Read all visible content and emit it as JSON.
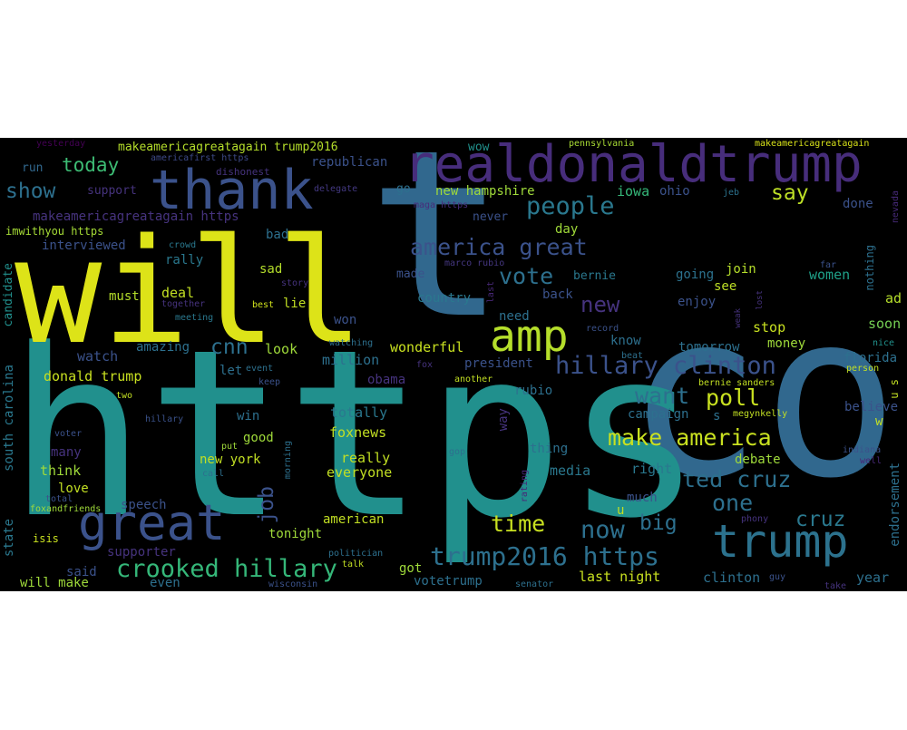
{
  "wordcloud": {
    "background": "#000000",
    "palette": [
      "#440154",
      "#3b528b",
      "#21908d",
      "#5dc863",
      "#fde725"
    ],
    "words": [
      {
        "id": "co",
        "text": "co",
        "color": "#31688e"
      },
      {
        "id": "https",
        "text": "https",
        "color": "#21908d"
      },
      {
        "id": "t",
        "text": "t",
        "color": "#31688e"
      },
      {
        "id": "will",
        "text": "will",
        "color": "#dde318"
      },
      {
        "id": "realdonaldtrump",
        "text": "realdonaldtrump",
        "color": "#472d7b"
      },
      {
        "id": "thank",
        "text": "thank",
        "color": "#3b528b"
      },
      {
        "id": "great",
        "text": "great",
        "color": "#3b528b"
      },
      {
        "id": "trump",
        "text": "trump",
        "color": "#2c728e"
      },
      {
        "id": "amp",
        "text": "amp",
        "color": "#b5de2b"
      },
      {
        "id": "makeamerica-trump2016",
        "text": "makeamericagreatagain trump2016",
        "color": "#b5de2b"
      },
      {
        "id": "yesterday",
        "text": "yesterday",
        "color": "#440154"
      },
      {
        "id": "pennsylvania",
        "text": "pennsylvania",
        "color": "#a8db34"
      },
      {
        "id": "makeamerica-top",
        "text": "makeamericagreatagain",
        "color": "#d8e219"
      },
      {
        "id": "americafirst",
        "text": "americafirst https",
        "color": "#3e4a89"
      },
      {
        "id": "dishonest",
        "text": "dishonest",
        "color": "#46337e"
      },
      {
        "id": "run",
        "text": "run",
        "color": "#31688e"
      },
      {
        "id": "today",
        "text": "today",
        "color": "#3dbc74"
      },
      {
        "id": "republican",
        "text": "republican",
        "color": "#3b528b"
      },
      {
        "id": "wow",
        "text": "wow",
        "color": "#21918c"
      },
      {
        "id": "show",
        "text": "show",
        "color": "#2d708e"
      },
      {
        "id": "support",
        "text": "support",
        "color": "#46337e"
      },
      {
        "id": "delegate",
        "text": "delegate",
        "color": "#443983"
      },
      {
        "id": "go",
        "text": "go",
        "color": "#2d708e"
      },
      {
        "id": "new-hampshire",
        "text": "new hampshire",
        "color": "#9fda3a"
      },
      {
        "id": "iowa",
        "text": "iowa",
        "color": "#35b779"
      },
      {
        "id": "ohio",
        "text": "ohio",
        "color": "#3b528b"
      },
      {
        "id": "jeb",
        "text": "jeb",
        "color": "#2c728e"
      },
      {
        "id": "nevada",
        "text": "nevada",
        "color": "#472a7a"
      },
      {
        "id": "say",
        "text": "say",
        "color": "#bddf26"
      },
      {
        "id": "done",
        "text": "done",
        "color": "#3b528b"
      },
      {
        "id": "maga-https",
        "text": "maga https",
        "color": "#472d7b"
      },
      {
        "id": "people",
        "text": "people",
        "color": "#2a788e"
      },
      {
        "id": "never",
        "text": "never",
        "color": "#3b528b"
      },
      {
        "id": "day",
        "text": "day",
        "color": "#a0da39"
      },
      {
        "id": "makeamerica-https",
        "text": "makeamericagreatagain https",
        "color": "#46337e"
      },
      {
        "id": "imwithyou",
        "text": "imwithyou https",
        "color": "#a5db36"
      },
      {
        "id": "interviewed",
        "text": "interviewed",
        "color": "#3b528b"
      },
      {
        "id": "crowd",
        "text": "crowd",
        "color": "#2a788e"
      },
      {
        "id": "bad",
        "text": "bad",
        "color": "#2d708e"
      },
      {
        "id": "america-great",
        "text": "america great",
        "color": "#3b528b"
      },
      {
        "id": "marco-rubio",
        "text": "marco rubio",
        "color": "#453781"
      },
      {
        "id": "far",
        "text": "far",
        "color": "#3b528b"
      },
      {
        "id": "nothing",
        "text": "nothing",
        "color": "#2d708e"
      },
      {
        "id": "rally",
        "text": "rally",
        "color": "#2a788e"
      },
      {
        "id": "vote",
        "text": "vote",
        "color": "#2d708e"
      },
      {
        "id": "made",
        "text": "made",
        "color": "#3b528b"
      },
      {
        "id": "bernie",
        "text": "bernie",
        "color": "#2a788e"
      },
      {
        "id": "join",
        "text": "join",
        "color": "#b5de2b"
      },
      {
        "id": "see",
        "text": "see",
        "color": "#bddf26"
      },
      {
        "id": "candidate",
        "text": "candidate",
        "color": "#21908d"
      },
      {
        "id": "sad",
        "text": "sad",
        "color": "#b5de2b"
      },
      {
        "id": "story",
        "text": "story",
        "color": "#46337e"
      },
      {
        "id": "new",
        "text": "new",
        "color": "#46337e"
      },
      {
        "id": "last",
        "text": "last",
        "color": "#482878"
      },
      {
        "id": "going",
        "text": "going",
        "color": "#2c728e"
      },
      {
        "id": "women",
        "text": "women",
        "color": "#1fa088"
      },
      {
        "id": "ad",
        "text": "ad",
        "color": "#b5de2b"
      },
      {
        "id": "must",
        "text": "must",
        "color": "#b5de2b"
      },
      {
        "id": "deal",
        "text": "deal",
        "color": "#c2df23"
      },
      {
        "id": "together",
        "text": "together",
        "color": "#46337e"
      },
      {
        "id": "best",
        "text": "best",
        "color": "#d0e11c"
      },
      {
        "id": "lie",
        "text": "lie",
        "color": "#c2df23"
      },
      {
        "id": "country",
        "text": "country",
        "color": "#2a788e"
      },
      {
        "id": "back",
        "text": "back",
        "color": "#3b528b"
      },
      {
        "id": "enjoy",
        "text": "enjoy",
        "color": "#3b528b"
      },
      {
        "id": "weak",
        "text": "weak",
        "color": "#46337e"
      },
      {
        "id": "lost",
        "text": "lost",
        "color": "#46337e"
      },
      {
        "id": "meeting",
        "text": "meeting",
        "color": "#2a788e"
      },
      {
        "id": "won",
        "text": "won",
        "color": "#3b528b"
      },
      {
        "id": "need",
        "text": "need",
        "color": "#2d708e"
      },
      {
        "id": "record",
        "text": "record",
        "color": "#3b528b"
      },
      {
        "id": "stop",
        "text": "stop",
        "color": "#c8e020"
      },
      {
        "id": "soon",
        "text": "soon",
        "color": "#75d054"
      },
      {
        "id": "watching",
        "text": "watching",
        "color": "#2d708e"
      },
      {
        "id": "cnn",
        "text": "cnn",
        "color": "#2d708e"
      },
      {
        "id": "look",
        "text": "look",
        "color": "#9fda3a"
      },
      {
        "id": "wonderful",
        "text": "wonderful",
        "color": "#c8e020"
      },
      {
        "id": "know",
        "text": "know",
        "color": "#2d708e"
      },
      {
        "id": "tomorrow",
        "text": "tomorrow",
        "color": "#2d708e"
      },
      {
        "id": "money",
        "text": "money",
        "color": "#9fda3a"
      },
      {
        "id": "nice",
        "text": "nice",
        "color": "#21918c"
      },
      {
        "id": "watch",
        "text": "watch",
        "color": "#3b528b"
      },
      {
        "id": "amazing",
        "text": "amazing",
        "color": "#2d708e"
      },
      {
        "id": "million",
        "text": "million",
        "color": "#2d708e"
      },
      {
        "id": "hillary-clinton",
        "text": "hillary clinton",
        "color": "#3b528b"
      },
      {
        "id": "fox",
        "text": "fox",
        "color": "#46337e"
      },
      {
        "id": "beat",
        "text": "beat",
        "color": "#2d708e"
      },
      {
        "id": "florida",
        "text": "florida",
        "color": "#2d708e"
      },
      {
        "id": "person",
        "text": "person",
        "color": "#c2df23"
      },
      {
        "id": "president",
        "text": "president",
        "color": "#3b528b"
      },
      {
        "id": "let",
        "text": "let",
        "color": "#2d708e"
      },
      {
        "id": "event",
        "text": "event",
        "color": "#2d708e"
      },
      {
        "id": "donald-trump",
        "text": "donald trump",
        "color": "#c8e020"
      },
      {
        "id": "south-carolina",
        "text": "south carolina",
        "color": "#2a788e"
      },
      {
        "id": "keep",
        "text": "keep",
        "color": "#3b528b"
      },
      {
        "id": "obama",
        "text": "obama",
        "color": "#46337e"
      },
      {
        "id": "another",
        "text": "another",
        "color": "#c2df23"
      },
      {
        "id": "rubio",
        "text": "rubio",
        "color": "#2d708e"
      },
      {
        "id": "poll",
        "text": "poll",
        "color": "#c8e020"
      },
      {
        "id": "bernie-sanders",
        "text": "bernie sanders",
        "color": "#c2df23"
      },
      {
        "id": "want",
        "text": "want",
        "color": "#2d708e"
      },
      {
        "id": "u-s",
        "text": "u s",
        "color": "#c2df23"
      },
      {
        "id": "two",
        "text": "two",
        "color": "#c2df23"
      },
      {
        "id": "hillary",
        "text": "hillary",
        "color": "#3b528b"
      },
      {
        "id": "win",
        "text": "win",
        "color": "#2d708e"
      },
      {
        "id": "totally",
        "text": "totally",
        "color": "#2a788e"
      },
      {
        "id": "campaign",
        "text": "campaign",
        "color": "#2d708e"
      },
      {
        "id": "s",
        "text": "s",
        "color": "#2d708e"
      },
      {
        "id": "megynkelly",
        "text": "megynkelly",
        "color": "#c2df23"
      },
      {
        "id": "w",
        "text": "w",
        "color": "#c2df23"
      },
      {
        "id": "way",
        "text": "way",
        "color": "#46337e"
      },
      {
        "id": "voter",
        "text": "voter",
        "color": "#3b528b"
      },
      {
        "id": "good",
        "text": "good",
        "color": "#9fda3a"
      },
      {
        "id": "foxnews",
        "text": "foxnews",
        "color": "#c2df23"
      },
      {
        "id": "make-america",
        "text": "make america",
        "color": "#c8e020"
      },
      {
        "id": "believe",
        "text": "believe",
        "color": "#3b528b"
      },
      {
        "id": "put",
        "text": "put",
        "color": "#9fda3a"
      },
      {
        "id": "morning",
        "text": "morning",
        "color": "#2d708e"
      },
      {
        "id": "gop",
        "text": "gop",
        "color": "#2d708e"
      },
      {
        "id": "thing",
        "text": "thing",
        "color": "#2d708e"
      },
      {
        "id": "indiana",
        "text": "indiana",
        "color": "#3b528b"
      },
      {
        "id": "many",
        "text": "many",
        "color": "#46337e"
      },
      {
        "id": "new-york",
        "text": "new york",
        "color": "#c2df23"
      },
      {
        "id": "really",
        "text": "really",
        "color": "#c2df23"
      },
      {
        "id": "debate",
        "text": "debate",
        "color": "#9fda3a"
      },
      {
        "id": "well",
        "text": "well",
        "color": "#482878"
      },
      {
        "id": "call",
        "text": "call",
        "color": "#2d708e"
      },
      {
        "id": "job",
        "text": "job",
        "color": "#3b528b"
      },
      {
        "id": "think",
        "text": "think",
        "color": "#9fda3a"
      },
      {
        "id": "everyone",
        "text": "everyone",
        "color": "#c2df23"
      },
      {
        "id": "media",
        "text": "media",
        "color": "#2a788e"
      },
      {
        "id": "right",
        "text": "right",
        "color": "#2a788e"
      },
      {
        "id": "ted-cruz",
        "text": "ted cruz",
        "color": "#2d708e"
      },
      {
        "id": "rating",
        "text": "rating",
        "color": "#482878"
      },
      {
        "id": "love",
        "text": "love",
        "color": "#c2df23"
      },
      {
        "id": "total",
        "text": "total",
        "color": "#3b528b"
      },
      {
        "id": "much",
        "text": "much",
        "color": "#3b528b"
      },
      {
        "id": "endorsement",
        "text": "endorsement",
        "color": "#2d708e"
      },
      {
        "id": "foxandfriends",
        "text": "foxandfriends",
        "color": "#9fda3a"
      },
      {
        "id": "speech",
        "text": "speech",
        "color": "#3b528b"
      },
      {
        "id": "one",
        "text": "one",
        "color": "#2d708e"
      },
      {
        "id": "state",
        "text": "state",
        "color": "#2a788e"
      },
      {
        "id": "tonight",
        "text": "tonight",
        "color": "#9fda3a"
      },
      {
        "id": "american",
        "text": "american",
        "color": "#c2df23"
      },
      {
        "id": "u",
        "text": "u",
        "color": "#c2df23"
      },
      {
        "id": "time",
        "text": "time",
        "color": "#c8e020"
      },
      {
        "id": "big",
        "text": "big",
        "color": "#2d708e"
      },
      {
        "id": "cruz",
        "text": "cruz",
        "color": "#2a788e"
      },
      {
        "id": "now",
        "text": "now",
        "color": "#2d708e"
      },
      {
        "id": "phony",
        "text": "phony",
        "color": "#46337e"
      },
      {
        "id": "isis",
        "text": "isis",
        "color": "#c8e020"
      },
      {
        "id": "crooked-hillary",
        "text": "crooked hillary",
        "color": "#35b779"
      },
      {
        "id": "trump2016-https",
        "text": "trump2016 https",
        "color": "#2d708e"
      },
      {
        "id": "supporter",
        "text": "supporter",
        "color": "#46337e"
      },
      {
        "id": "politician",
        "text": "politician",
        "color": "#2d708e"
      },
      {
        "id": "talk",
        "text": "talk",
        "color": "#c2df23"
      },
      {
        "id": "got",
        "text": "got",
        "color": "#9fda3a"
      },
      {
        "id": "said",
        "text": "said",
        "color": "#3b528b"
      },
      {
        "id": "last-night",
        "text": "last night",
        "color": "#c8e020"
      },
      {
        "id": "clinton",
        "text": "clinton",
        "color": "#2d708e"
      },
      {
        "id": "guy",
        "text": "guy",
        "color": "#3b528b"
      },
      {
        "id": "year",
        "text": "year",
        "color": "#2d708e"
      },
      {
        "id": "will-make",
        "text": "will make",
        "color": "#9fda3a"
      },
      {
        "id": "even",
        "text": "even",
        "color": "#2d708e"
      },
      {
        "id": "wisconsin",
        "text": "wisconsin",
        "color": "#3b528b"
      },
      {
        "id": "votetrump",
        "text": "votetrump",
        "color": "#2d708e"
      },
      {
        "id": "senator",
        "text": "senator",
        "color": "#2d708e"
      },
      {
        "id": "take",
        "text": "take",
        "color": "#46337e"
      }
    ]
  }
}
